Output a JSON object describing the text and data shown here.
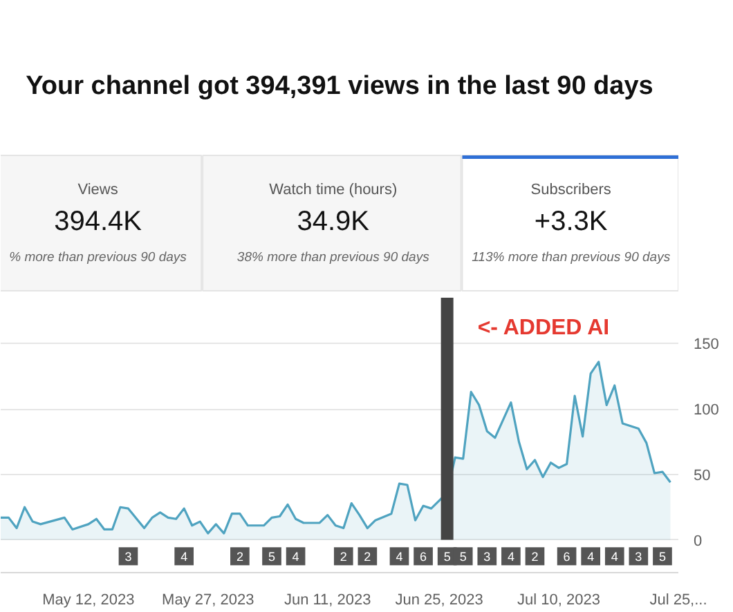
{
  "chart_data": [
    {
      "type": "other",
      "title": "Your channel got 394,391 views in the last 90 days",
      "categories": [
        "Views",
        "Watch time (hours)",
        "Subscribers"
      ],
      "annotations": [
        "394.4K",
        "34.9K",
        "+3.3K",
        "% more than previous 90 days",
        "38% more than previous 90 days",
        "113% more than previous 90 days"
      ]
    },
    {
      "type": "area",
      "grid": "y",
      "x": [
        "2023-05-01",
        "2023-05-02",
        "2023-05-03",
        "2023-05-04",
        "2023-05-05",
        "2023-05-06",
        "2023-05-09",
        "2023-05-10",
        "2023-05-12",
        "2023-05-13",
        "2023-05-14",
        "2023-05-15",
        "2023-05-16",
        "2023-05-17",
        "2023-05-19",
        "2023-05-20",
        "2023-05-21",
        "2023-05-22",
        "2023-05-23",
        "2023-05-24",
        "2023-05-25",
        "2023-05-26",
        "2023-05-27",
        "2023-05-28",
        "2023-05-29",
        "2023-05-30",
        "2023-05-31",
        "2023-06-01",
        "2023-06-03",
        "2023-06-04",
        "2023-06-05",
        "2023-06-06",
        "2023-06-07",
        "2023-06-08",
        "2023-06-10",
        "2023-06-11",
        "2023-06-12",
        "2023-06-13",
        "2023-06-14",
        "2023-06-15",
        "2023-06-16",
        "2023-06-17",
        "2023-06-19",
        "2023-06-20",
        "2023-06-21",
        "2023-06-22",
        "2023-06-23",
        "2023-06-24",
        "2023-06-26",
        "2023-06-27",
        "2023-06-28",
        "2023-06-29",
        "2023-06-30",
        "2023-07-01",
        "2023-07-02",
        "2023-07-04",
        "2023-07-05",
        "2023-07-06",
        "2023-07-07",
        "2023-07-08",
        "2023-07-09",
        "2023-07-10",
        "2023-07-11",
        "2023-07-12",
        "2023-07-13",
        "2023-07-14",
        "2023-07-15",
        "2023-07-16",
        "2023-07-17",
        "2023-07-18",
        "2023-07-19",
        "2023-07-20",
        "2023-07-21",
        "2023-07-22",
        "2023-07-23",
        "2023-07-24"
      ],
      "series": [
        {
          "color": "#4fa3c0",
          "values": [
            17,
            17,
            9,
            25,
            14,
            12,
            17,
            8,
            12,
            16,
            8,
            8,
            25,
            24,
            9,
            17,
            21,
            17,
            16,
            24,
            11,
            14,
            5,
            12,
            5,
            20,
            20,
            11,
            11,
            17,
            18,
            27,
            16,
            13,
            13,
            19,
            11,
            9,
            28,
            19,
            9,
            15,
            20,
            43,
            42,
            15,
            26,
            24,
            36,
            63,
            62,
            113,
            103,
            83,
            78,
            105,
            75,
            54,
            61,
            48,
            59,
            55,
            58,
            110,
            79,
            127,
            136,
            103,
            118,
            89,
            87,
            85,
            74,
            51,
            52,
            44
          ]
        }
      ],
      "ylim": [
        -25,
        185
      ],
      "yticks": [
        0,
        50,
        100,
        150
      ],
      "xlim": [
        "2023-05-01",
        "2023-07-25"
      ],
      "xticks": [
        {
          "value": "2023-05-12",
          "label": "May 12, 2023"
        },
        {
          "value": "2023-05-27",
          "label": "May 27, 2023"
        },
        {
          "value": "2023-06-11",
          "label": "Jun 11, 2023"
        },
        {
          "value": "2023-06-25",
          "label": "Jun 25, 2023"
        },
        {
          "value": "2023-07-10",
          "label": "Jul 10, 2023"
        },
        {
          "value": "2023-07-25",
          "label": "Jul 25,..."
        }
      ],
      "ref_lines": [
        {
          "axis": "x",
          "value": "2023-06-26",
          "label": "<- ADDED AI",
          "color": "#444444"
        }
      ],
      "annotations": [
        {
          "text": "3",
          "x": "2023-05-17"
        },
        {
          "text": "4",
          "x": "2023-05-24"
        },
        {
          "text": "2",
          "x": "2023-05-31"
        },
        {
          "text": "5",
          "x": "2023-06-04"
        },
        {
          "text": "4",
          "x": "2023-06-07"
        },
        {
          "text": "2",
          "x": "2023-06-13"
        },
        {
          "text": "2",
          "x": "2023-06-16"
        },
        {
          "text": "4",
          "x": "2023-06-20"
        },
        {
          "text": "6",
          "x": "2023-06-23"
        },
        {
          "text": "5",
          "x": "2023-06-26"
        },
        {
          "text": "5",
          "x": "2023-06-28"
        },
        {
          "text": "3",
          "x": "2023-07-01"
        },
        {
          "text": "4",
          "x": "2023-07-04"
        },
        {
          "text": "2",
          "x": "2023-07-07"
        },
        {
          "text": "6",
          "x": "2023-07-11"
        },
        {
          "text": "4",
          "x": "2023-07-14"
        },
        {
          "text": "4",
          "x": "2023-07-17"
        },
        {
          "text": "3",
          "x": "2023-07-20"
        },
        {
          "text": "5",
          "x": "2023-07-23"
        }
      ]
    }
  ]
}
